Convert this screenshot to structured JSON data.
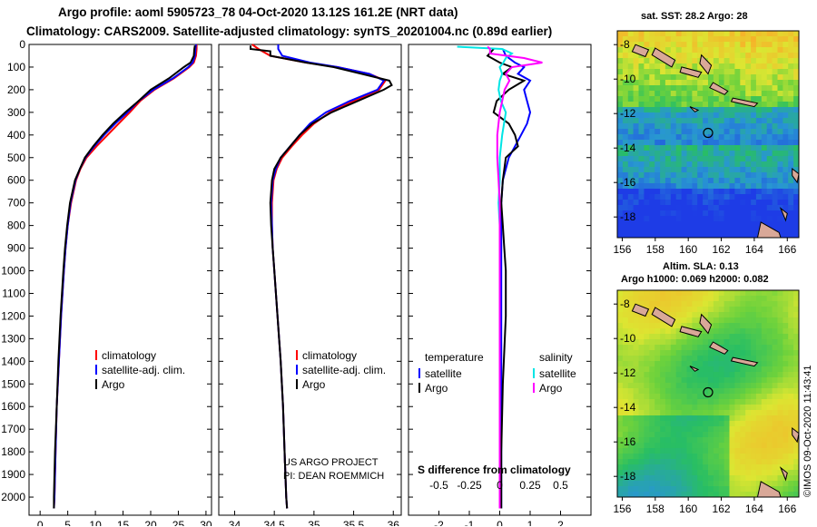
{
  "header": {
    "line1": "Argo profile: aoml 5905723_78 04-Oct-2020 13.12S 161.2E (NRT data)",
    "line2": "Climatology: CARS2009. Satellite-adjusted climatology: synTS_20201004.nc (0.89d earlier)"
  },
  "colors": {
    "climatology": "#ff0000",
    "satellite": "#0000ff",
    "argo": "#000000",
    "sal_satellite": "#00e5e5",
    "sal_argo": "#ff00ff"
  },
  "depth_axis": {
    "ticks": [
      0,
      100,
      200,
      300,
      400,
      500,
      600,
      700,
      800,
      900,
      1000,
      1100,
      1200,
      1300,
      1400,
      1500,
      1600,
      1700,
      1800,
      1900,
      2000
    ]
  },
  "chart_data": [
    {
      "type": "line",
      "id": "temperature",
      "xlabel": "temperature (deg C)",
      "ylabel": "depth",
      "xlim": [
        -2,
        31
      ],
      "ylim": [
        2080,
        0
      ],
      "xticks": [
        "0",
        "5",
        "10",
        "15",
        "20",
        "25",
        "30"
      ],
      "xtick_values": [
        0,
        5,
        10,
        15,
        20,
        25,
        30
      ],
      "legend": {
        "placement": "bottom-left",
        "entries": [
          "climatology",
          "satellite-adj. clim.",
          "Argo"
        ]
      },
      "series": [
        {
          "name": "climatology",
          "depth": [
            0,
            20,
            50,
            80,
            100,
            150,
            200,
            250,
            300,
            350,
            400,
            450,
            500,
            550,
            600,
            700,
            800,
            900,
            1000,
            1200,
            1400,
            1600,
            1800,
            2000,
            2050
          ],
          "values": [
            28.3,
            28.3,
            28.2,
            27.8,
            27.0,
            24.2,
            20.7,
            18.1,
            16.2,
            14.2,
            12.2,
            10.2,
            8.4,
            7.3,
            6.5,
            5.6,
            5.0,
            4.6,
            4.3,
            3.8,
            3.4,
            3.0,
            2.8,
            2.6,
            2.5
          ]
        },
        {
          "name": "satellite-adj. clim.",
          "depth": [
            0,
            20,
            50,
            80,
            100,
            150,
            200,
            250,
            300,
            350,
            400,
            450,
            500,
            550,
            600,
            700,
            800,
            900,
            1000,
            1200,
            1400,
            1600,
            1800,
            2000,
            2050
          ],
          "values": [
            28.2,
            28.1,
            28.0,
            27.6,
            26.8,
            24.0,
            20.5,
            17.8,
            15.8,
            13.6,
            11.6,
            9.8,
            8.2,
            7.2,
            6.4,
            5.5,
            5.0,
            4.6,
            4.3,
            3.8,
            3.4,
            3.0,
            2.8,
            2.6,
            2.5
          ]
        },
        {
          "name": "Argo",
          "depth": [
            5,
            20,
            50,
            80,
            100,
            150,
            200,
            250,
            300,
            350,
            400,
            450,
            500,
            550,
            600,
            700,
            800,
            900,
            1000,
            1200,
            1400,
            1600,
            1800,
            2000,
            2050
          ],
          "values": [
            28.0,
            27.9,
            27.8,
            27.2,
            26.0,
            23.3,
            20.0,
            17.8,
            15.4,
            13.2,
            11.3,
            9.6,
            8.1,
            7.2,
            6.3,
            5.4,
            4.9,
            4.5,
            4.2,
            3.7,
            3.3,
            3.0,
            2.7,
            2.5,
            2.5
          ]
        }
      ]
    },
    {
      "type": "line",
      "id": "salinity",
      "xlabel": "salinity",
      "ylabel": "depth",
      "xlim": [
        33.8,
        36.1
      ],
      "ylim": [
        2080,
        0
      ],
      "xticks": [
        "34",
        "34.5",
        "35",
        "35.5",
        "36"
      ],
      "xtick_values": [
        34,
        34.5,
        35,
        35.5,
        36
      ],
      "legend": {
        "placement": "bottom-right",
        "entries": [
          "climatology",
          "satellite-adj. clim.",
          "Argo"
        ]
      },
      "annotation": [
        "US ARGO PROJECT",
        "PI: DEAN ROEMMICH"
      ],
      "series": [
        {
          "name": "climatology",
          "depth": [
            0,
            20,
            50,
            80,
            100,
            130,
            160,
            200,
            250,
            300,
            350,
            400,
            450,
            500,
            550,
            600,
            700,
            800,
            900,
            1000,
            1200,
            1400,
            1600,
            1800,
            2000,
            2050
          ],
          "values": [
            34.22,
            34.3,
            34.45,
            34.9,
            35.3,
            35.7,
            35.9,
            35.82,
            35.5,
            35.2,
            35.0,
            34.85,
            34.72,
            34.6,
            34.53,
            34.49,
            34.47,
            34.47,
            34.48,
            34.5,
            34.54,
            34.58,
            34.61,
            34.63,
            34.65,
            34.66
          ]
        },
        {
          "name": "satellite-adj. clim.",
          "depth": [
            0,
            20,
            50,
            80,
            100,
            130,
            160,
            200,
            250,
            300,
            350,
            400,
            450,
            500,
            550,
            600,
            700,
            800,
            900,
            1000,
            1200,
            1400,
            1600,
            1800,
            2000,
            2050
          ],
          "values": [
            34.55,
            34.55,
            34.6,
            34.95,
            35.3,
            35.7,
            35.88,
            35.8,
            35.45,
            35.15,
            34.95,
            34.82,
            34.7,
            34.58,
            34.52,
            34.48,
            34.46,
            34.47,
            34.48,
            34.5,
            34.54,
            34.58,
            34.61,
            34.63,
            34.65,
            34.66
          ]
        },
        {
          "name": "Argo",
          "depth": [
            5,
            20,
            30,
            50,
            60,
            80,
            100,
            130,
            160,
            180,
            200,
            250,
            300,
            350,
            400,
            450,
            500,
            550,
            600,
            700,
            800,
            900,
            1000,
            1200,
            1400,
            1600,
            1800,
            2000,
            2050
          ],
          "values": [
            34.2,
            34.2,
            34.45,
            34.45,
            34.6,
            34.9,
            35.25,
            35.6,
            35.95,
            35.98,
            35.88,
            35.55,
            35.22,
            34.98,
            34.82,
            34.7,
            34.58,
            34.5,
            34.47,
            34.45,
            34.46,
            34.48,
            34.5,
            34.54,
            34.58,
            34.61,
            34.63,
            34.65,
            34.66
          ]
        }
      ]
    },
    {
      "type": "line",
      "id": "difference",
      "xlabel": "T difference from climatology",
      "xlabel_top": "S difference from climatology",
      "ylabel": "depth",
      "xlim": [
        -3,
        3
      ],
      "ylim": [
        2080,
        0
      ],
      "xticks": [
        "-2",
        "-1",
        "0",
        "1",
        "2"
      ],
      "xtick_values": [
        -2,
        -1,
        0,
        1,
        2
      ],
      "xticks_top": [
        "-0.5",
        "-0.25",
        "0",
        "0.25",
        "0.5"
      ],
      "xtick_values_top": [
        -0.5,
        -0.25,
        0,
        0.25,
        0.5
      ],
      "legend": {
        "placement": "bottom",
        "temperature_title": "temperature",
        "salinity_title": "salinity",
        "temperature_entries": [
          "satellite",
          "Argo"
        ],
        "salinity_entries": [
          "satellite",
          "Argo"
        ]
      },
      "series": [
        {
          "name": "T satellite",
          "depth": [
            20,
            50,
            80,
            100,
            130,
            160,
            200,
            250,
            300,
            350,
            400,
            450,
            500,
            600,
            700,
            800,
            900,
            1000,
            1200,
            1500,
            1800,
            2050
          ],
          "values": [
            0.1,
            0.2,
            0.5,
            0.8,
            0.6,
            1.0,
            0.8,
            0.9,
            1.0,
            0.9,
            0.7,
            0.5,
            0.3,
            0.1,
            0.05,
            0.05,
            0.05,
            0.05,
            0.05,
            0.05,
            0.05,
            0.05
          ]
        },
        {
          "name": "T Argo",
          "depth": [
            20,
            50,
            80,
            100,
            130,
            160,
            200,
            250,
            300,
            350,
            400,
            450,
            500,
            600,
            700,
            800,
            900,
            1000,
            1200,
            1500,
            1800,
            2050
          ],
          "values": [
            -0.2,
            -0.4,
            0.0,
            0.4,
            0.1,
            0.8,
            0.3,
            -0.1,
            -0.2,
            0.3,
            0.5,
            0.6,
            0.2,
            0.1,
            0.05,
            0.1,
            0.15,
            0.2,
            0.2,
            0.1,
            0.05,
            0.05
          ]
        },
        {
          "name": "S satellite",
          "depth": [
            10,
            20,
            40,
            60,
            80,
            100,
            130,
            160,
            200,
            250,
            300,
            400,
            500,
            600,
            700,
            800,
            900,
            1000,
            1200,
            1500,
            1800,
            2050
          ],
          "values": [
            -0.35,
            0.02,
            0.1,
            0.05,
            0.03,
            0.0,
            0.02,
            0.0,
            -0.01,
            0.01,
            0.05,
            0.02,
            0.0,
            0.0,
            -0.01,
            0.0,
            0.0,
            0.0,
            0.0,
            0.0,
            0.0,
            0.0
          ]
        },
        {
          "name": "S Argo",
          "depth": [
            10,
            20,
            40,
            60,
            80,
            100,
            130,
            160,
            200,
            250,
            300,
            400,
            500,
            600,
            700,
            800,
            900,
            1000,
            1200,
            1500,
            1800,
            2050
          ],
          "values": [
            -0.1,
            -0.08,
            -0.08,
            0.2,
            0.35,
            0.1,
            0.05,
            0.08,
            0.04,
            0.02,
            0.0,
            -0.02,
            -0.02,
            -0.01,
            0.0,
            0.0,
            0.0,
            0.0,
            0.0,
            0.0,
            0.0,
            0.0
          ]
        }
      ]
    }
  ],
  "maps": {
    "sst": {
      "title": "sat. SST: 28.2 Argo: 28",
      "xticks": [
        "156",
        "158",
        "160",
        "162",
        "164",
        "166"
      ],
      "yticks": [
        "-8",
        "-10",
        "-12",
        "-14",
        "-16",
        "-18"
      ],
      "argo_lon": 161.2,
      "argo_lat": -13.12
    },
    "sla": {
      "title1": "Altim. SLA: 0.13",
      "title2": "Argo h1000: 0.069 h2000: 0.082",
      "xticks": [
        "156",
        "158",
        "160",
        "162",
        "164",
        "166"
      ],
      "yticks": [
        "-8",
        "-10",
        "-12",
        "-14",
        "-16",
        "-18"
      ],
      "argo_lon": 161.2,
      "argo_lat": -13.12
    }
  },
  "footer": {
    "imos": "©IMOS 09-Oct-2020 11:43:41"
  }
}
